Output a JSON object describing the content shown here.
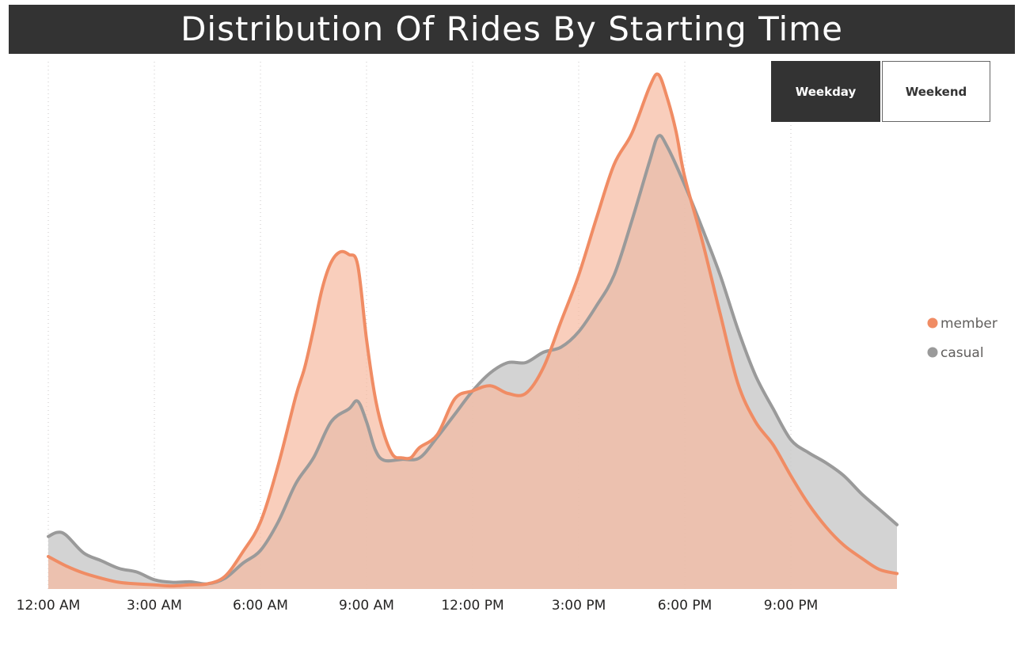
{
  "header": {
    "title": "Distribution Of Rides By Starting Time"
  },
  "slicer": {
    "options": [
      {
        "label": "Weekday",
        "selected": true
      },
      {
        "label": "Weekend",
        "selected": false
      }
    ]
  },
  "colors": {
    "member": "#f08c64",
    "member_fill": "#f6b9a0",
    "casual": "#9a9a9a",
    "casual_fill": "#c8c8c8",
    "title_bar": "#333333"
  },
  "chart_data": {
    "type": "area",
    "x_ticks": [
      "12:00 AM",
      "3:00 AM",
      "6:00 AM",
      "9:00 AM",
      "12:00 PM",
      "3:00 PM",
      "6:00 PM",
      "9:00 PM"
    ],
    "xlim": [
      0,
      24
    ],
    "ylim": [
      0,
      100
    ],
    "grid": {
      "vertical": true,
      "horizontal": false
    },
    "legend_position": "right",
    "series": [
      {
        "name": "member",
        "x": [
          0,
          0.5,
          1,
          1.5,
          2,
          2.5,
          3,
          3.5,
          4,
          4.5,
          5,
          5.5,
          6,
          6.5,
          7,
          7.25,
          7.5,
          7.75,
          8,
          8.25,
          8.5,
          8.75,
          9,
          9.25,
          9.5,
          9.75,
          10,
          10.25,
          10.5,
          11,
          11.5,
          12,
          12.5,
          13,
          13.5,
          14,
          14.5,
          15,
          15.5,
          16,
          16.5,
          17,
          17.25,
          17.5,
          17.75,
          18,
          18.5,
          19,
          19.5,
          20,
          20.5,
          21,
          21.5,
          22,
          22.5,
          23,
          23.5,
          24
        ],
        "y": [
          6.3,
          4.5,
          3.1,
          2.1,
          1.3,
          1.0,
          0.8,
          0.6,
          0.8,
          1.0,
          2.5,
          7.2,
          13.0,
          24.0,
          37.5,
          43.0,
          50.5,
          58.5,
          63.5,
          65.5,
          65.0,
          63.0,
          48.5,
          37.0,
          30.0,
          26.0,
          25.5,
          25.5,
          27.5,
          30.0,
          37.0,
          38.5,
          39.5,
          38.0,
          38.0,
          43.0,
          52.0,
          61.0,
          72.0,
          82.5,
          88.5,
          97.5,
          100.0,
          95.5,
          89.0,
          80.0,
          67.5,
          53.5,
          40.0,
          32.5,
          28.0,
          22.0,
          16.5,
          12.0,
          8.5,
          6.0,
          3.8,
          3.0
        ]
      },
      {
        "name": "casual",
        "x": [
          0,
          0.25,
          0.5,
          1,
          1.5,
          2,
          2.5,
          3,
          3.5,
          4,
          4.5,
          5,
          5.5,
          6,
          6.5,
          7,
          7.5,
          8,
          8.5,
          8.75,
          9,
          9.25,
          9.5,
          10,
          10.5,
          11,
          11.5,
          12,
          12.5,
          13,
          13.5,
          14,
          14.5,
          15,
          15.5,
          16,
          16.5,
          17,
          17.25,
          17.5,
          18,
          18.5,
          19,
          19.5,
          20,
          20.5,
          21,
          21.5,
          22,
          22.5,
          23,
          23.5,
          24
        ],
        "y": [
          10.2,
          11.0,
          10.5,
          7.0,
          5.5,
          4.0,
          3.3,
          1.8,
          1.3,
          1.4,
          1.0,
          2.1,
          5.0,
          7.5,
          13.0,
          20.5,
          25.5,
          32.5,
          35.0,
          36.5,
          32.5,
          27.0,
          25.0,
          25.2,
          25.5,
          29.5,
          34.0,
          38.5,
          42.0,
          44.0,
          44.0,
          46.0,
          47.0,
          50.0,
          55.0,
          61.0,
          71.5,
          83.0,
          88.0,
          86.0,
          78.5,
          70.0,
          61.0,
          50.5,
          41.5,
          35.0,
          29.0,
          26.5,
          24.5,
          22.0,
          18.5,
          15.5,
          12.5
        ]
      }
    ]
  }
}
